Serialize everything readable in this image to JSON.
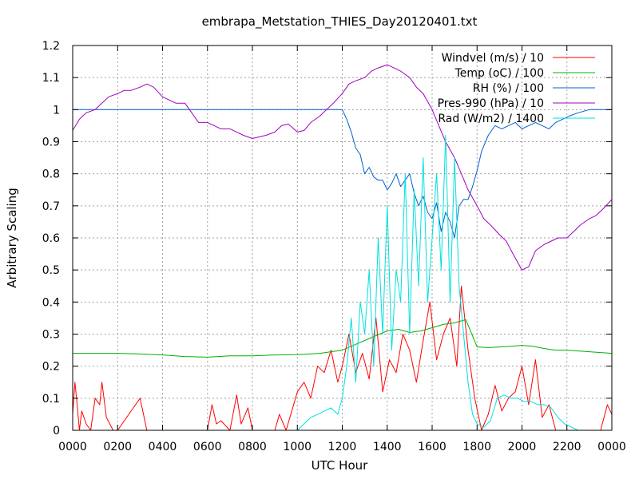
{
  "chart_data": {
    "type": "line",
    "title": "embrapa_Metstation_THIES_Day20120401.txt",
    "xlabel": "UTC Hour",
    "ylabel": "Arbitrary Scaling",
    "xlim": [
      0,
      24
    ],
    "ylim": [
      0,
      1.2
    ],
    "x_tick_values": [
      0,
      2,
      4,
      6,
      8,
      10,
      12,
      14,
      16,
      18,
      20,
      22,
      24
    ],
    "x_tick_labels": [
      "0000",
      "0200",
      "0400",
      "0600",
      "0800",
      "1000",
      "1200",
      "1400",
      "1600",
      "1800",
      "2000",
      "2200",
      "0000"
    ],
    "y_ticks": [
      0,
      0.1,
      0.2,
      0.3,
      0.4,
      0.5,
      0.6,
      0.7,
      0.8,
      0.9,
      1,
      1.1,
      1.2
    ],
    "grid": true,
    "legend_position": "top-right",
    "series": [
      {
        "name": "Windvel (m/s) / 10",
        "color": "#ff0000",
        "x": [
          0,
          0.1,
          0.2,
          0.3,
          0.4,
          0.6,
          0.8,
          1.0,
          1.2,
          1.3,
          1.5,
          1.8,
          2.0,
          2.5,
          3.0,
          3.3,
          3.5,
          4.0,
          4.5,
          5.0,
          5.5,
          6.0,
          6.2,
          6.4,
          6.6,
          7.0,
          7.3,
          7.5,
          7.8,
          8.0,
          8.5,
          9.0,
          9.2,
          9.5,
          10.0,
          10.3,
          10.6,
          10.9,
          11.2,
          11.5,
          11.8,
          12.0,
          12.3,
          12.6,
          12.9,
          13.2,
          13.5,
          13.8,
          14.1,
          14.4,
          14.7,
          15.0,
          15.3,
          15.6,
          15.9,
          16.2,
          16.5,
          16.8,
          17.1,
          17.3,
          17.6,
          17.9,
          18.2,
          18.5,
          18.8,
          19.1,
          19.4,
          19.7,
          20.0,
          20.3,
          20.6,
          20.9,
          21.2,
          21.5,
          21.8,
          22.1,
          22.5,
          23.0,
          23.3,
          23.5,
          23.8,
          24.0
        ],
        "values": [
          0.05,
          0.15,
          0.08,
          0.0,
          0.06,
          0.02,
          0.0,
          0.1,
          0.08,
          0.15,
          0.04,
          0.0,
          0.0,
          0.05,
          0.1,
          0.0,
          0.0,
          0.0,
          0.0,
          0.0,
          0.0,
          0.0,
          0.08,
          0.02,
          0.03,
          0.0,
          0.11,
          0.02,
          0.07,
          0.0,
          0.0,
          0.0,
          0.05,
          0.0,
          0.12,
          0.15,
          0.1,
          0.2,
          0.18,
          0.25,
          0.15,
          0.2,
          0.3,
          0.18,
          0.24,
          0.16,
          0.35,
          0.12,
          0.22,
          0.18,
          0.3,
          0.25,
          0.15,
          0.28,
          0.4,
          0.22,
          0.3,
          0.35,
          0.2,
          0.45,
          0.25,
          0.1,
          0.0,
          0.05,
          0.14,
          0.06,
          0.1,
          0.12,
          0.2,
          0.08,
          0.22,
          0.04,
          0.08,
          0.0,
          0.0,
          0.0,
          0.0,
          0.0,
          0.0,
          0.0,
          0.08,
          0.05
        ]
      },
      {
        "name": "Temp (oC) / 100",
        "color": "#00b000",
        "x": [
          0,
          1,
          2,
          3,
          4,
          5,
          6,
          7,
          8,
          9,
          10,
          11,
          12,
          12.5,
          13,
          13.5,
          14,
          14.5,
          15,
          15.5,
          16,
          16.5,
          17,
          17.5,
          18,
          18.5,
          19,
          19.5,
          20,
          20.5,
          21,
          21.5,
          22,
          23,
          24
        ],
        "values": [
          0.24,
          0.24,
          0.24,
          0.238,
          0.235,
          0.23,
          0.228,
          0.232,
          0.232,
          0.235,
          0.236,
          0.24,
          0.25,
          0.265,
          0.28,
          0.295,
          0.31,
          0.315,
          0.305,
          0.31,
          0.32,
          0.33,
          0.335,
          0.345,
          0.26,
          0.258,
          0.26,
          0.262,
          0.265,
          0.262,
          0.255,
          0.25,
          0.25,
          0.245,
          0.24
        ]
      },
      {
        "name": "RH (%) / 100",
        "color": "#0060d0",
        "x": [
          0,
          2,
          4,
          6,
          8,
          10,
          11,
          12,
          12.2,
          12.4,
          12.6,
          12.8,
          13.0,
          13.2,
          13.4,
          13.6,
          13.8,
          14.0,
          14.2,
          14.4,
          14.6,
          14.8,
          15.0,
          15.2,
          15.4,
          15.6,
          15.8,
          16.0,
          16.2,
          16.4,
          16.6,
          16.8,
          17.0,
          17.2,
          17.4,
          17.6,
          17.8,
          18.0,
          18.2,
          18.5,
          18.8,
          19.1,
          19.4,
          19.7,
          20.0,
          20.3,
          20.6,
          20.9,
          21.2,
          21.5,
          21.8,
          22.1,
          22.5,
          23.0,
          24.0
        ],
        "values": [
          1,
          1,
          1,
          1,
          1,
          1,
          1,
          1,
          0.97,
          0.93,
          0.88,
          0.86,
          0.8,
          0.82,
          0.79,
          0.78,
          0.78,
          0.75,
          0.77,
          0.8,
          0.76,
          0.78,
          0.8,
          0.74,
          0.7,
          0.73,
          0.68,
          0.66,
          0.71,
          0.62,
          0.68,
          0.65,
          0.6,
          0.7,
          0.72,
          0.72,
          0.76,
          0.81,
          0.87,
          0.92,
          0.95,
          0.94,
          0.95,
          0.96,
          0.94,
          0.95,
          0.96,
          0.95,
          0.94,
          0.96,
          0.97,
          0.98,
          0.99,
          1.0,
          1.0
        ]
      },
      {
        "name": "Pres-990 (hPa) / 10",
        "color": "#a000c0",
        "x": [
          0,
          0.3,
          0.6,
          1.0,
          1.3,
          1.6,
          2.0,
          2.3,
          2.6,
          3.0,
          3.3,
          3.6,
          4.0,
          4.3,
          4.6,
          5.0,
          5.3,
          5.6,
          6.0,
          6.3,
          6.6,
          7.0,
          7.3,
          7.6,
          8.0,
          8.3,
          8.6,
          9.0,
          9.3,
          9.6,
          10.0,
          10.3,
          10.6,
          11.0,
          11.3,
          11.6,
          12.0,
          12.3,
          12.6,
          13.0,
          13.3,
          13.6,
          14.0,
          14.3,
          14.6,
          15.0,
          15.3,
          15.6,
          16.0,
          16.3,
          16.6,
          17.0,
          17.3,
          17.6,
          18.0,
          18.3,
          18.6,
          19.0,
          19.3,
          19.6,
          20.0,
          20.3,
          20.6,
          21.0,
          21.3,
          21.6,
          22.0,
          22.3,
          22.6,
          23.0,
          23.3,
          23.6,
          24.0
        ],
        "values": [
          0.935,
          0.97,
          0.99,
          1.0,
          1.02,
          1.04,
          1.05,
          1.06,
          1.06,
          1.07,
          1.08,
          1.07,
          1.04,
          1.03,
          1.02,
          1.02,
          0.99,
          0.96,
          0.96,
          0.95,
          0.94,
          0.94,
          0.93,
          0.92,
          0.91,
          0.915,
          0.92,
          0.93,
          0.95,
          0.955,
          0.93,
          0.935,
          0.96,
          0.98,
          1.0,
          1.02,
          1.05,
          1.08,
          1.09,
          1.1,
          1.12,
          1.13,
          1.14,
          1.13,
          1.12,
          1.1,
          1.07,
          1.05,
          1.0,
          0.95,
          0.9,
          0.85,
          0.8,
          0.75,
          0.7,
          0.66,
          0.64,
          0.61,
          0.59,
          0.55,
          0.5,
          0.51,
          0.56,
          0.58,
          0.59,
          0.6,
          0.6,
          0.62,
          0.64,
          0.66,
          0.67,
          0.69,
          0.72
        ]
      },
      {
        "name": "Rad (W/m2) / 1400",
        "color": "#00e0e0",
        "x": [
          0,
          10.0,
          10.3,
          10.6,
          10.9,
          11.2,
          11.5,
          11.8,
          12.0,
          12.2,
          12.4,
          12.6,
          12.8,
          13.0,
          13.2,
          13.4,
          13.6,
          13.8,
          14.0,
          14.2,
          14.4,
          14.6,
          14.8,
          15.0,
          15.2,
          15.4,
          15.6,
          15.8,
          16.0,
          16.2,
          16.4,
          16.6,
          16.8,
          17.0,
          17.2,
          17.4,
          17.6,
          17.8,
          18.0,
          18.3,
          18.6,
          18.9,
          19.2,
          19.5,
          19.8,
          20.1,
          20.4,
          20.7,
          21.0,
          21.3,
          21.6,
          21.9,
          22.2,
          22.5,
          24.0
        ],
        "values": [
          0,
          0,
          0.02,
          0.04,
          0.05,
          0.06,
          0.07,
          0.05,
          0.1,
          0.2,
          0.35,
          0.15,
          0.4,
          0.3,
          0.5,
          0.2,
          0.6,
          0.3,
          0.7,
          0.25,
          0.5,
          0.4,
          0.8,
          0.3,
          0.75,
          0.45,
          0.85,
          0.4,
          0.6,
          0.8,
          0.5,
          0.92,
          0.4,
          0.85,
          0.45,
          0.3,
          0.15,
          0.05,
          0.02,
          0.01,
          0.03,
          0.1,
          0.11,
          0.1,
          0.1,
          0.09,
          0.09,
          0.08,
          0.08,
          0.07,
          0.04,
          0.02,
          0.01,
          0,
          0
        ]
      }
    ]
  }
}
